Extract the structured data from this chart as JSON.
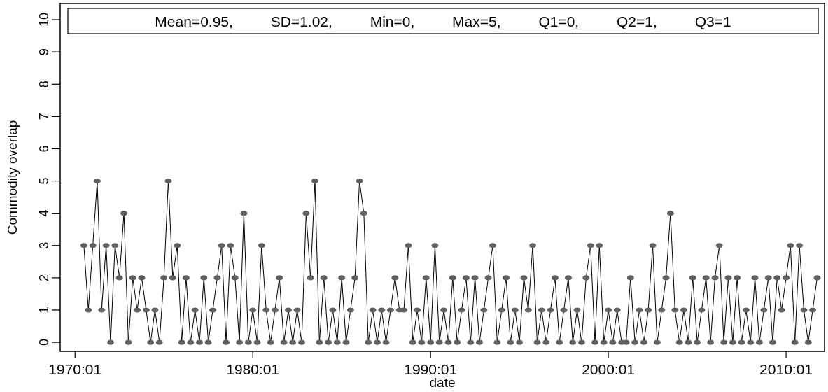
{
  "chart_data": {
    "type": "line",
    "xlabel": "date",
    "ylabel": "Commodity overlap",
    "annotations": [
      "Mean=0.95, SD=1.02, Min=0, Max=5, Q1=0, Q2=1, Q3=1"
    ],
    "x": [
      "1970-07",
      "1970-10",
      "1971-01",
      "1971-04",
      "1971-07",
      "1971-10",
      "1972-01",
      "1972-04",
      "1972-07",
      "1972-10",
      "1973-01",
      "1973-04",
      "1973-07",
      "1973-10",
      "1974-01",
      "1974-04",
      "1974-07",
      "1974-10",
      "1975-01",
      "1975-04",
      "1975-07",
      "1975-10",
      "1976-01",
      "1976-04",
      "1976-07",
      "1976-10",
      "1977-01",
      "1977-04",
      "1977-07",
      "1977-10",
      "1978-01",
      "1978-04",
      "1978-07",
      "1978-10",
      "1979-01",
      "1979-04",
      "1979-07",
      "1979-10",
      "1980-01",
      "1980-04",
      "1980-07",
      "1980-10",
      "1981-01",
      "1981-04",
      "1981-07",
      "1981-10",
      "1982-01",
      "1982-04",
      "1982-07",
      "1982-10",
      "1983-01",
      "1983-04",
      "1983-07",
      "1983-10",
      "1984-01",
      "1984-04",
      "1984-07",
      "1984-10",
      "1985-01",
      "1985-04",
      "1985-07",
      "1985-10",
      "1986-01",
      "1986-04",
      "1986-07",
      "1986-10",
      "1987-01",
      "1987-04",
      "1987-07",
      "1987-10",
      "1988-01",
      "1988-04",
      "1988-07",
      "1988-10",
      "1989-01",
      "1989-04",
      "1989-07",
      "1989-10",
      "1990-01",
      "1990-04",
      "1990-07",
      "1990-10",
      "1991-01",
      "1991-04",
      "1991-07",
      "1991-10",
      "1992-01",
      "1992-04",
      "1992-07",
      "1992-10",
      "1993-01",
      "1993-04",
      "1993-07",
      "1993-10",
      "1994-01",
      "1994-04",
      "1994-07",
      "1994-10",
      "1995-01",
      "1995-04",
      "1995-07",
      "1995-10",
      "1996-01",
      "1996-04",
      "1996-07",
      "1996-10",
      "1997-01",
      "1997-04",
      "1997-07",
      "1997-10",
      "1998-01",
      "1998-04",
      "1998-07",
      "1998-10",
      "1999-01",
      "1999-04",
      "1999-07",
      "1999-10",
      "2000-01",
      "2000-04",
      "2000-07",
      "2000-10",
      "2001-01",
      "2001-04",
      "2001-07",
      "2001-10",
      "2002-01",
      "2002-04",
      "2002-07",
      "2002-10",
      "2003-01",
      "2003-04",
      "2003-07",
      "2003-10",
      "2004-01",
      "2004-04",
      "2004-07",
      "2004-10",
      "2005-01",
      "2005-04",
      "2005-07",
      "2005-10",
      "2006-01",
      "2006-04",
      "2006-07",
      "2006-10",
      "2007-01",
      "2007-04",
      "2007-07",
      "2007-10",
      "2008-01",
      "2008-04",
      "2008-07",
      "2008-10",
      "2009-01",
      "2009-04",
      "2009-07",
      "2009-10",
      "2010-01",
      "2010-04",
      "2010-07",
      "2010-10",
      "2011-01",
      "2011-04",
      "2011-07",
      "2011-10"
    ],
    "series": [
      {
        "color": "#606060",
        "values": [
          3,
          1,
          3,
          5,
          1,
          3,
          0,
          3,
          2,
          4,
          0,
          2,
          1,
          2,
          1,
          0,
          1,
          0,
          2,
          5,
          2,
          3,
          0,
          2,
          0,
          1,
          0,
          2,
          0,
          1,
          2,
          3,
          0,
          3,
          2,
          0,
          4,
          0,
          1,
          0,
          3,
          1,
          0,
          1,
          2,
          0,
          1,
          0,
          1,
          0,
          4,
          2,
          5,
          0,
          2,
          0,
          1,
          0,
          2,
          0,
          1,
          2,
          5,
          4,
          0,
          1,
          0,
          1,
          0,
          1,
          2,
          1,
          1,
          3,
          0,
          1,
          0,
          2,
          0,
          3,
          0,
          1,
          0,
          2,
          0,
          1,
          2,
          0,
          2,
          0,
          1,
          2,
          3,
          0,
          1,
          2,
          0,
          1,
          0,
          2,
          1,
          3,
          0,
          1,
          0,
          1,
          2,
          0,
          1,
          2,
          0,
          1,
          0,
          2,
          3,
          0,
          3,
          0,
          1,
          0,
          1,
          0,
          0,
          2,
          0,
          1,
          0,
          1,
          3,
          0,
          1,
          2,
          4,
          1,
          0,
          1,
          0,
          2,
          0,
          1,
          2,
          0,
          2,
          3,
          0,
          2,
          0,
          2,
          0,
          1,
          0,
          2,
          0,
          1,
          2,
          0,
          2,
          1,
          2,
          3,
          0,
          3,
          1,
          0,
          1,
          2
        ]
      }
    ],
    "xlim": [
      "1969-03",
      "2012-03"
    ],
    "ylim": [
      -0.28,
      10.5
    ],
    "xticks": [
      {
        "value": "1970-01",
        "label": "1970:01"
      },
      {
        "value": "1980-01",
        "label": "1980:01"
      },
      {
        "value": "1990-01",
        "label": "1990:01"
      },
      {
        "value": "2000-01",
        "label": "2000:01"
      },
      {
        "value": "2010-01",
        "label": "2010:01"
      }
    ],
    "yticks": [
      0,
      1,
      2,
      3,
      4,
      5,
      6,
      7,
      8,
      9,
      10
    ],
    "marker": "circle",
    "line_style": "solid",
    "grid": false
  }
}
